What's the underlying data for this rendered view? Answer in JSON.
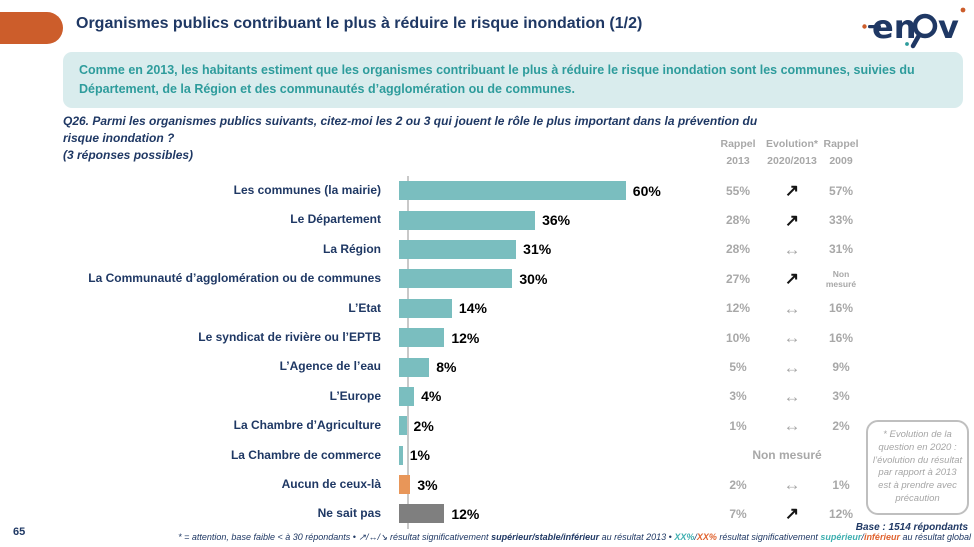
{
  "header": {
    "title": "Organismes publics contribuant le plus à réduire le risque inondation (1/2)",
    "logo_name": "enov"
  },
  "summary": "Comme en 2013, les habitants estiment que les organismes contribuant le plus à réduire le risque inondation sont les communes, suivies du Département, de la Région et des communautés d’agglomération ou de communes.",
  "question": {
    "line1": "Q26. Parmi les organismes publics suivants, citez-moi les 2 ou 3 qui jouent le rôle le plus important dans la prévention du risque inondation ?",
    "line2": "(3 réponses possibles)"
  },
  "columns": {
    "rappel2013_l1": "Rappel",
    "rappel2013_l2": "2013",
    "evolution_l1": "Evolution*",
    "evolution_l2": "2020/2013",
    "rappel2009_l1": "Rappel",
    "rappel2009_l2": "2009"
  },
  "chart_data": {
    "type": "bar",
    "orientation": "horizontal",
    "value_unit": "%",
    "xlim": [
      0,
      64
    ],
    "grid": false,
    "colors": {
      "default": "#7ABEBF",
      "none_option": "#E89659",
      "dont_know": "#7F7F7F"
    },
    "evolution_icons": {
      "up": "↗",
      "stable": "↔"
    },
    "rows": [
      {
        "label": "Les communes (la mairie)",
        "value": 60,
        "display": "60%",
        "color": "default",
        "rappel_2013": "55%",
        "evolution_2020_2013": "up",
        "rappel_2009": "57%"
      },
      {
        "label": "Le Département",
        "value": 36,
        "display": "36%",
        "color": "default",
        "rappel_2013": "28%",
        "evolution_2020_2013": "up",
        "rappel_2009": "33%"
      },
      {
        "label": "La Région",
        "value": 31,
        "display": "31%",
        "color": "default",
        "rappel_2013": "28%",
        "evolution_2020_2013": "stable",
        "rappel_2009": "31%"
      },
      {
        "label": "La Communauté d’agglomération ou de communes",
        "value": 30,
        "display": "30%",
        "color": "default",
        "rappel_2013": "27%",
        "evolution_2020_2013": "up",
        "rappel_2009": "Non mesuré"
      },
      {
        "label": "L’Etat",
        "value": 14,
        "display": "14%",
        "color": "default",
        "rappel_2013": "12%",
        "evolution_2020_2013": "stable",
        "rappel_2009": "16%"
      },
      {
        "label": "Le syndicat de rivière ou l’EPTB",
        "value": 12,
        "display": "12%",
        "color": "default",
        "rappel_2013": "10%",
        "evolution_2020_2013": "stable",
        "rappel_2009": "16%"
      },
      {
        "label": "L’Agence de l’eau",
        "value": 8,
        "display": "8%",
        "color": "default",
        "rappel_2013": "5%",
        "evolution_2020_2013": "stable",
        "rappel_2009": "9%"
      },
      {
        "label": "L’Europe",
        "value": 4,
        "display": "4%",
        "color": "default",
        "rappel_2013": "3%",
        "evolution_2020_2013": "stable",
        "rappel_2009": "3%"
      },
      {
        "label": "La Chambre d’Agriculture",
        "value": 2,
        "display": "2%",
        "color": "default",
        "rappel_2013": "1%",
        "evolution_2020_2013": "stable",
        "rappel_2009": "2%"
      },
      {
        "label": "La Chambre de commerce",
        "value": 1,
        "display": "1%",
        "color": "default",
        "non_mesure_span": "Non mesuré"
      },
      {
        "label": "Aucun de ceux-là",
        "value": 3,
        "display": "3%",
        "color": "none_option",
        "rappel_2013": "2%",
        "evolution_2020_2013": "stable",
        "rappel_2009": "1%"
      },
      {
        "label": "Ne sait pas",
        "value": 12,
        "display": "12%",
        "color": "dont_know",
        "rappel_2013": "7%",
        "evolution_2020_2013": "up",
        "rappel_2009": "12%"
      }
    ]
  },
  "note_box": "* Evolution de la question en 2020 : l’évolution du résultat par rapport à 2013 est à prendre avec précaution",
  "base": "Base : 1514 répondants",
  "footer": {
    "page_number": "65",
    "legend_segments": [
      {
        "text": "* = attention, base faible < à 30 répondants • ",
        "style": "plain"
      },
      {
        "text": "↗/↔/↘ ",
        "style": "plain"
      },
      {
        "text": " résultat significativement ",
        "style": "plain"
      },
      {
        "text": "supérieur/stable/inférieur",
        "style": "bold"
      },
      {
        "text": " au résultat 2013 • ",
        "style": "plain"
      },
      {
        "text": "XX%",
        "style": "teal"
      },
      {
        "text": "/",
        "style": "plain"
      },
      {
        "text": "XX%",
        "style": "orange"
      },
      {
        "text": " résultat significativement ",
        "style": "plain"
      },
      {
        "text": "supérieur",
        "style": "teal"
      },
      {
        "text": "/",
        "style": "plain"
      },
      {
        "text": "inférieur",
        "style": "orange"
      },
      {
        "text": " au résultat global",
        "style": "plain"
      }
    ]
  }
}
